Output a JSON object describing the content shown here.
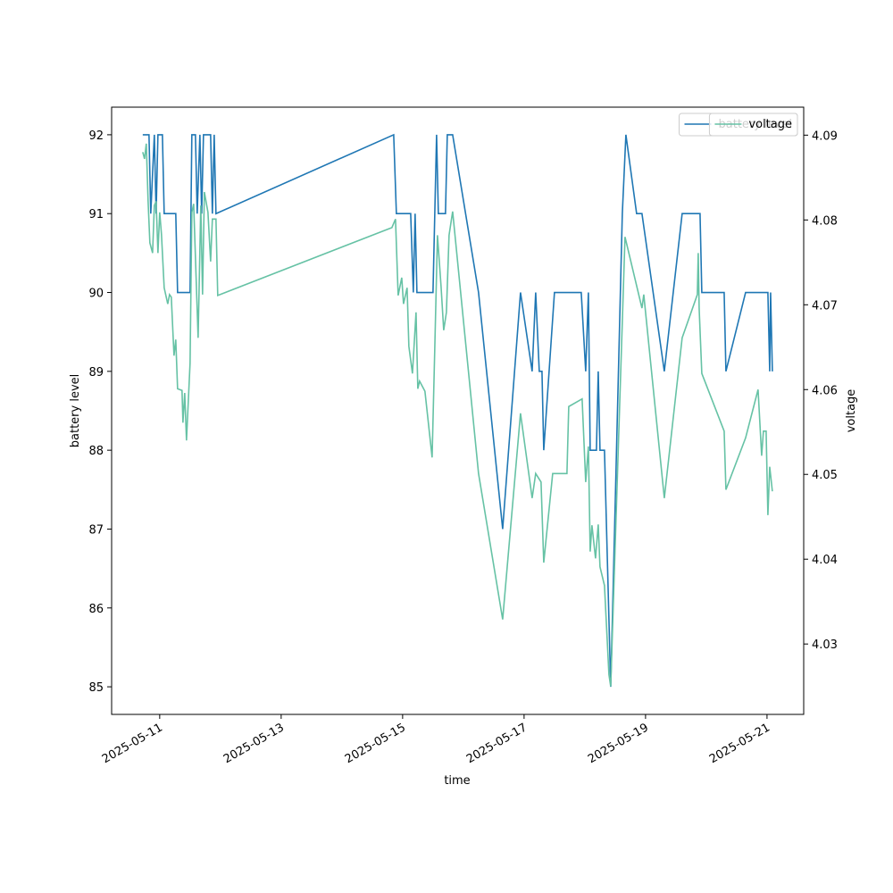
{
  "chart_data": {
    "type": "line",
    "xlabel": "time",
    "ylabel": "battery level",
    "y2label": "voltage",
    "xlim": [
      "2025-05-10T05:00",
      "2025-05-21T14:30"
    ],
    "xticks": [
      "2025-05-11",
      "2025-05-13",
      "2025-05-15",
      "2025-05-17",
      "2025-05-19",
      "2025-05-21"
    ],
    "ylim": [
      84.65,
      92.35
    ],
    "yticks": [
      85,
      86,
      87,
      88,
      89,
      90,
      91,
      92
    ],
    "y2lim": [
      4.0217,
      4.0933
    ],
    "y2ticks": [
      4.03,
      4.04,
      4.05,
      4.06,
      4.07,
      4.08,
      4.09
    ],
    "legend": "upper right",
    "series": [
      {
        "name": "battery level",
        "color": "#1f77b4",
        "axis": "y",
        "x": [
          "2025-05-10T17:18",
          "2025-05-10T19:46",
          "2025-05-10T20:28",
          "2025-05-10T21:53",
          "2025-05-10T22:35",
          "2025-05-10T23:18",
          "2025-05-11T01:04",
          "2025-05-11T01:46",
          "2025-05-11T06:21",
          "2025-05-11T07:04",
          "2025-05-11T12:00",
          "2025-05-11T12:42",
          "2025-05-11T14:07",
          "2025-05-11T14:49",
          "2025-05-11T15:53",
          "2025-05-11T16:35",
          "2025-05-11T17:18",
          "2025-05-11T20:07",
          "2025-05-11T20:49",
          "2025-05-11T21:32",
          "2025-05-11T22:14",
          "2025-05-14T20:28",
          "2025-05-14T21:32",
          "2025-05-15T03:11",
          "2025-05-15T04:14",
          "2025-05-15T04:56",
          "2025-05-15T05:39",
          "2025-05-15T12:00",
          "2025-05-15T13:25",
          "2025-05-15T14:07",
          "2025-05-15T16:56",
          "2025-05-15T17:39",
          "2025-05-15T19:46",
          "2025-05-16T06:00",
          "2025-05-16T15:32",
          "2025-05-16T22:35",
          "2025-05-17T03:11",
          "2025-05-17T04:35",
          "2025-05-17T06:00",
          "2025-05-17T07:04",
          "2025-05-17T07:46",
          "2025-05-17T12:00",
          "2025-05-17T22:35",
          "2025-05-18T00:21",
          "2025-05-18T01:25",
          "2025-05-18T02:07",
          "2025-05-18T04:35",
          "2025-05-18T05:18",
          "2025-05-18T06:00",
          "2025-05-18T07:46",
          "2025-05-18T10:14",
          "2025-05-18T14:49",
          "2025-05-18T16:14",
          "2025-05-18T20:28",
          "2025-05-18T22:35",
          "2025-05-19T07:25",
          "2025-05-19T14:28",
          "2025-05-19T21:32",
          "2025-05-19T22:14",
          "2025-05-20T07:04",
          "2025-05-20T07:46",
          "2025-05-20T15:32",
          "2025-05-21T00:21",
          "2025-05-21T01:04",
          "2025-05-21T01:25",
          "2025-05-21T02:07"
        ],
        "values": [
          92,
          92,
          91,
          92,
          91,
          92,
          92,
          91,
          91,
          90,
          90,
          92,
          92,
          91,
          92,
          91,
          92,
          92,
          91,
          92,
          91,
          92,
          91,
          91,
          90,
          91,
          90,
          90,
          92,
          91,
          91,
          92,
          92,
          90,
          87,
          90,
          89,
          90,
          89,
          89,
          88,
          90,
          90,
          89,
          90,
          88,
          88,
          89,
          88,
          88,
          85,
          91,
          92,
          91,
          91,
          89,
          91,
          91,
          90,
          90,
          89,
          90,
          90,
          89,
          90,
          89
        ]
      },
      {
        "name": "voltage",
        "color": "#66c2a5",
        "axis": "y2",
        "x": [
          "2025-05-10T17:18",
          "2025-05-10T18:00",
          "2025-05-10T18:42",
          "2025-05-10T19:25",
          "2025-05-10T20:07",
          "2025-05-10T21:11",
          "2025-05-10T21:53",
          "2025-05-10T22:35",
          "2025-05-10T23:18",
          "2025-05-11T00:00",
          "2025-05-11T00:42",
          "2025-05-11T01:46",
          "2025-05-11T03:11",
          "2025-05-11T03:53",
          "2025-05-11T04:35",
          "2025-05-11T05:39",
          "2025-05-11T06:21",
          "2025-05-11T07:04",
          "2025-05-11T08:49",
          "2025-05-11T09:11",
          "2025-05-11T09:53",
          "2025-05-11T10:35",
          "2025-05-11T12:00",
          "2025-05-11T12:42",
          "2025-05-11T13:25",
          "2025-05-11T15:11",
          "2025-05-11T16:14",
          "2025-05-11T16:56",
          "2025-05-11T17:39",
          "2025-05-11T19:04",
          "2025-05-11T20:07",
          "2025-05-11T20:49",
          "2025-05-11T22:14",
          "2025-05-11T22:56",
          "2025-05-14T19:46",
          "2025-05-14T21:11",
          "2025-05-14T22:14",
          "2025-05-14T23:39",
          "2025-05-15T00:21",
          "2025-05-15T01:46",
          "2025-05-15T02:28",
          "2025-05-15T03:53",
          "2025-05-15T05:18",
          "2025-05-15T06:00",
          "2025-05-15T06:42",
          "2025-05-15T08:49",
          "2025-05-15T11:39",
          "2025-05-15T12:42",
          "2025-05-15T13:46",
          "2025-05-15T15:11",
          "2025-05-15T16:14",
          "2025-05-15T17:18",
          "2025-05-15T18:21",
          "2025-05-15T19:46",
          "2025-05-16T06:00",
          "2025-05-16T15:32",
          "2025-05-16T22:35",
          "2025-05-17T03:11",
          "2025-05-17T04:35",
          "2025-05-17T06:42",
          "2025-05-17T07:46",
          "2025-05-17T11:18",
          "2025-05-17T16:56",
          "2025-05-17T17:39",
          "2025-05-17T22:56",
          "2025-05-18T00:21",
          "2025-05-18T01:25",
          "2025-05-18T02:07",
          "2025-05-18T02:49",
          "2025-05-18T04:14",
          "2025-05-18T05:18",
          "2025-05-18T06:00",
          "2025-05-18T07:46",
          "2025-05-18T09:32",
          "2025-05-18T10:14",
          "2025-05-18T15:53",
          "2025-05-18T22:35",
          "2025-05-18T23:18",
          "2025-05-19T07:25",
          "2025-05-19T14:28",
          "2025-05-19T20:28",
          "2025-05-19T20:49",
          "2025-05-19T21:11",
          "2025-05-19T22:14",
          "2025-05-20T07:04",
          "2025-05-20T07:46",
          "2025-05-20T15:32",
          "2025-05-20T20:28",
          "2025-05-20T21:53",
          "2025-05-20T22:35",
          "2025-05-20T23:39",
          "2025-05-21T00:21",
          "2025-05-21T01:04",
          "2025-05-21T02:07"
        ],
        "values": [
          4.088,
          4.0872,
          4.089,
          4.0822,
          4.0773,
          4.0761,
          4.0817,
          4.0822,
          4.0761,
          4.0809,
          4.0783,
          4.072,
          4.0701,
          4.0712,
          4.0709,
          4.064,
          4.0659,
          4.0601,
          4.0599,
          4.0561,
          4.0596,
          4.054,
          4.0631,
          4.0809,
          4.0819,
          4.0661,
          4.0817,
          4.0712,
          4.0833,
          4.0809,
          4.0751,
          4.0801,
          4.0801,
          4.0711,
          4.0791,
          4.0801,
          4.0711,
          4.0732,
          4.0701,
          4.072,
          4.0651,
          4.0619,
          4.0691,
          4.0601,
          4.061,
          4.0598,
          4.052,
          4.0648,
          4.0782,
          4.0722,
          4.067,
          4.0691,
          4.0782,
          4.081,
          4.0501,
          4.0329,
          4.0572,
          4.0472,
          4.0501,
          4.0491,
          4.0396,
          4.0501,
          4.0501,
          4.058,
          4.0589,
          4.0491,
          4.0533,
          4.0409,
          4.044,
          4.0401,
          4.0441,
          4.0391,
          4.0369,
          4.0264,
          4.025,
          4.078,
          4.0696,
          4.0712,
          4.0472,
          4.0661,
          4.0712,
          4.0761,
          4.0696,
          4.0619,
          4.0551,
          4.0482,
          4.0543,
          4.06,
          4.0522,
          4.0551,
          4.0551,
          4.0452,
          4.0509,
          4.048
        ]
      }
    ]
  }
}
